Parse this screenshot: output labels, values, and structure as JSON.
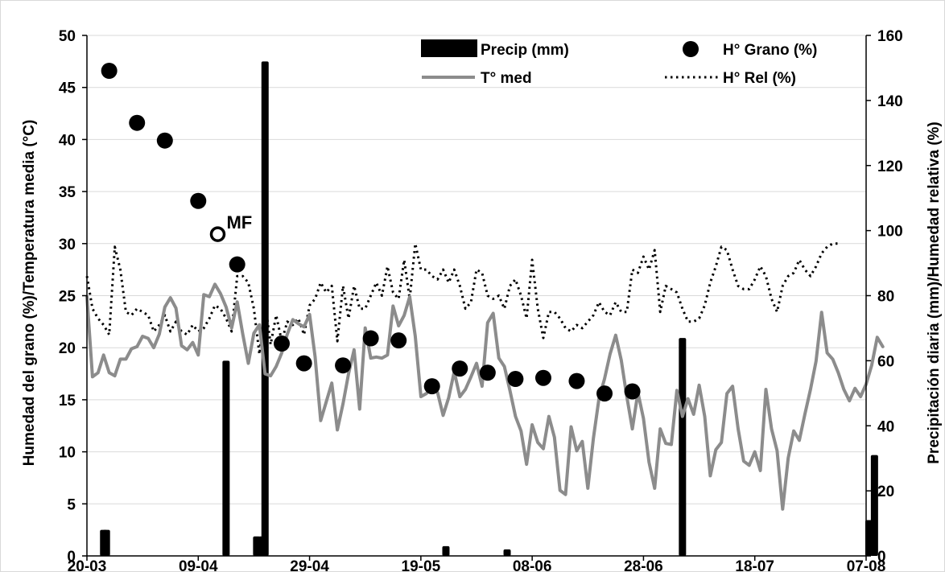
{
  "chart_data": {
    "type": "bar+line+scatter",
    "x_start": "20-03",
    "x_tick_labels": [
      "20-03",
      "09-04",
      "29-04",
      "19-05",
      "08-06",
      "28-06",
      "18-07",
      "07-08"
    ],
    "y_left": {
      "label": "Humedad del grano (%)/Temperatura media (°C)",
      "range": [
        0,
        50
      ],
      "ticks": [
        "0",
        "5",
        "10",
        "15",
        "20",
        "25",
        "30",
        "35",
        "40",
        "45",
        "50"
      ]
    },
    "y_right": {
      "label": "Precipitación diaria (mm)/Humedad relativa (%)",
      "range": [
        0,
        160
      ],
      "ticks": [
        "0",
        "20",
        "40",
        "60",
        "80",
        "100",
        "120",
        "140",
        "160"
      ]
    },
    "legend": [
      {
        "name": "Precip (mm)",
        "kind": "bar"
      },
      {
        "name": "H° Grano (%)",
        "kind": "dot"
      },
      {
        "name": "T° med",
        "kind": "line"
      },
      {
        "name": "H° Rel (%)",
        "kind": "dotted"
      }
    ],
    "annotation": {
      "text": "MF",
      "day": 23.5,
      "value": 30.9
    },
    "colors": {
      "bar": "#000000",
      "temp_line": "#8c8c8c",
      "dots": "#000000",
      "rel_humidity": "#000000"
    },
    "precip_mm": [
      [
        3,
        8
      ],
      [
        3.5,
        8
      ],
      [
        25,
        60
      ],
      [
        30.5,
        6
      ],
      [
        31.5,
        6
      ],
      [
        32,
        152
      ],
      [
        64.5,
        3
      ],
      [
        75.5,
        2
      ],
      [
        107,
        67
      ],
      [
        140.5,
        11
      ],
      [
        141.5,
        31
      ]
    ],
    "grain_moisture_pct": [
      [
        4,
        46.6
      ],
      [
        9,
        41.6
      ],
      [
        14,
        39.9
      ],
      [
        20,
        34.1
      ],
      [
        27,
        28.0
      ],
      [
        35,
        20.4
      ],
      [
        39,
        18.5
      ],
      [
        46,
        18.3
      ],
      [
        51,
        20.9
      ],
      [
        56,
        20.7
      ],
      [
        62,
        16.3
      ],
      [
        67,
        18.0
      ],
      [
        72,
        17.6
      ],
      [
        77,
        17.0
      ],
      [
        82,
        17.1
      ],
      [
        88,
        16.8
      ],
      [
        93,
        15.6
      ],
      [
        98,
        15.8
      ]
    ],
    "mf_point": [
      23.5,
      30.9
    ],
    "temperature_c": [
      [
        0,
        24.9
      ],
      [
        1,
        17.2
      ],
      [
        2,
        17.6
      ],
      [
        3,
        19.3
      ],
      [
        4,
        17.6
      ],
      [
        5,
        17.3
      ],
      [
        6,
        18.9
      ],
      [
        7,
        18.9
      ],
      [
        8,
        19.9
      ],
      [
        9,
        20.1
      ],
      [
        10,
        21.1
      ],
      [
        11,
        20.9
      ],
      [
        12,
        20.0
      ],
      [
        13,
        21.3
      ],
      [
        14,
        23.9
      ],
      [
        15,
        24.8
      ],
      [
        16,
        23.8
      ],
      [
        17,
        20.2
      ],
      [
        18,
        19.8
      ],
      [
        19,
        20.5
      ],
      [
        20,
        19.3
      ],
      [
        21,
        25.1
      ],
      [
        22,
        24.9
      ],
      [
        23,
        26.1
      ],
      [
        24,
        25.2
      ],
      [
        25,
        23.9
      ],
      [
        26,
        21.9
      ],
      [
        27,
        24.4
      ],
      [
        28,
        21.3
      ],
      [
        29,
        18.5
      ],
      [
        30,
        21.4
      ],
      [
        31,
        22.2
      ],
      [
        32,
        17.5
      ],
      [
        33,
        17.3
      ],
      [
        34,
        18.2
      ],
      [
        35,
        19.5
      ],
      [
        36,
        21.3
      ],
      [
        37,
        22.7
      ],
      [
        38,
        22.3
      ],
      [
        39,
        22.0
      ],
      [
        40,
        23.2
      ],
      [
        41,
        19.1
      ],
      [
        42,
        13.0
      ],
      [
        43,
        14.8
      ],
      [
        44,
        16.6
      ],
      [
        45,
        12.1
      ],
      [
        46,
        14.6
      ],
      [
        47,
        17.5
      ],
      [
        48,
        19.8
      ],
      [
        49,
        14.1
      ],
      [
        50,
        21.9
      ],
      [
        51,
        19.0
      ],
      [
        52,
        19.1
      ],
      [
        53,
        19.0
      ],
      [
        54,
        19.3
      ],
      [
        55,
        24.0
      ],
      [
        56,
        22.1
      ],
      [
        57,
        23.1
      ],
      [
        58,
        24.9
      ],
      [
        59,
        21.1
      ],
      [
        60,
        15.3
      ],
      [
        61,
        15.6
      ],
      [
        62,
        16.2
      ],
      [
        63,
        15.7
      ],
      [
        64,
        13.5
      ],
      [
        65,
        15.2
      ],
      [
        66,
        17.7
      ],
      [
        67,
        15.3
      ],
      [
        68,
        16.0
      ],
      [
        69,
        17.2
      ],
      [
        70,
        18.5
      ],
      [
        71,
        16.3
      ],
      [
        72,
        22.4
      ],
      [
        73,
        23.3
      ],
      [
        74,
        19.0
      ],
      [
        75,
        18.2
      ],
      [
        76,
        15.9
      ],
      [
        77,
        13.4
      ],
      [
        78,
        12.0
      ],
      [
        79,
        8.8
      ],
      [
        80,
        12.6
      ],
      [
        81,
        10.9
      ],
      [
        82,
        10.3
      ],
      [
        83,
        13.4
      ],
      [
        84,
        11.4
      ],
      [
        85,
        6.3
      ],
      [
        86,
        5.9
      ],
      [
        87,
        12.4
      ],
      [
        88,
        10.1
      ],
      [
        89,
        11.0
      ],
      [
        90,
        6.5
      ],
      [
        91,
        11.3
      ],
      [
        92,
        15.1
      ],
      [
        93,
        17.0
      ],
      [
        94,
        19.4
      ],
      [
        95,
        21.2
      ],
      [
        96,
        18.8
      ],
      [
        97,
        15.3
      ],
      [
        98,
        12.2
      ],
      [
        99,
        15.7
      ],
      [
        100,
        13.2
      ],
      [
        101,
        9.0
      ],
      [
        102,
        6.5
      ],
      [
        103,
        12.2
      ],
      [
        104,
        10.8
      ],
      [
        105,
        10.7
      ],
      [
        106,
        15.9
      ],
      [
        107,
        13.4
      ],
      [
        108,
        15.1
      ],
      [
        109,
        13.6
      ],
      [
        110,
        16.4
      ],
      [
        111,
        13.4
      ],
      [
        112,
        7.7
      ],
      [
        113,
        10.2
      ],
      [
        114,
        10.9
      ],
      [
        115,
        15.6
      ],
      [
        116,
        16.3
      ],
      [
        117,
        12.2
      ],
      [
        118,
        9.1
      ],
      [
        119,
        8.7
      ],
      [
        120,
        10.0
      ],
      [
        121,
        8.2
      ],
      [
        122,
        16.0
      ],
      [
        123,
        12.2
      ],
      [
        124,
        10.1
      ],
      [
        125,
        4.5
      ],
      [
        126,
        9.4
      ],
      [
        127,
        12.0
      ],
      [
        128,
        11.1
      ],
      [
        129,
        13.6
      ],
      [
        130,
        16.0
      ],
      [
        131,
        18.7
      ],
      [
        132,
        23.4
      ],
      [
        133,
        19.5
      ],
      [
        134,
        18.9
      ],
      [
        135,
        17.6
      ],
      [
        136,
        16.0
      ],
      [
        137,
        14.9
      ],
      [
        138,
        16.1
      ],
      [
        139,
        15.3
      ],
      [
        140,
        16.5
      ],
      [
        141,
        18.3
      ],
      [
        142,
        21.0
      ],
      [
        143,
        20.1
      ]
    ],
    "rel_humidity_pct": [
      [
        0,
        86
      ],
      [
        1,
        76
      ],
      [
        2,
        73
      ],
      [
        3,
        71
      ],
      [
        4,
        68
      ],
      [
        5,
        95
      ],
      [
        6,
        88
      ],
      [
        7,
        75
      ],
      [
        8,
        74
      ],
      [
        9,
        76
      ],
      [
        10,
        75
      ],
      [
        11,
        74
      ],
      [
        12,
        69
      ],
      [
        13,
        71
      ],
      [
        14,
        74
      ],
      [
        15,
        69
      ],
      [
        16,
        72
      ],
      [
        17,
        69
      ],
      [
        18,
        68
      ],
      [
        19,
        71
      ],
      [
        20,
        69
      ],
      [
        21,
        70
      ],
      [
        22,
        73
      ],
      [
        23,
        77
      ],
      [
        24,
        76
      ],
      [
        25,
        73
      ],
      [
        26,
        69
      ],
      [
        27,
        86
      ],
      [
        28,
        86
      ],
      [
        29,
        84
      ],
      [
        30,
        76
      ],
      [
        31,
        62
      ],
      [
        32,
        78
      ],
      [
        33,
        65
      ],
      [
        34,
        74
      ],
      [
        35,
        66
      ],
      [
        36,
        72
      ],
      [
        37,
        71
      ],
      [
        38,
        73
      ],
      [
        39,
        68
      ],
      [
        40,
        77
      ],
      [
        41,
        79
      ],
      [
        42,
        84
      ],
      [
        43,
        81
      ],
      [
        44,
        83
      ],
      [
        45,
        66
      ],
      [
        46,
        83
      ],
      [
        47,
        73
      ],
      [
        48,
        83
      ],
      [
        49,
        76
      ],
      [
        50,
        76
      ],
      [
        51,
        80
      ],
      [
        52,
        84
      ],
      [
        53,
        80
      ],
      [
        54,
        89
      ],
      [
        55,
        81
      ],
      [
        56,
        79
      ],
      [
        57,
        91
      ],
      [
        58,
        79
      ],
      [
        59,
        96
      ],
      [
        60,
        88
      ],
      [
        61,
        88
      ],
      [
        62,
        86
      ],
      [
        63,
        85
      ],
      [
        64,
        88
      ],
      [
        65,
        84
      ],
      [
        66,
        88
      ],
      [
        67,
        83
      ],
      [
        68,
        76
      ],
      [
        69,
        78
      ],
      [
        70,
        88
      ],
      [
        71,
        87
      ],
      [
        72,
        80
      ],
      [
        73,
        79
      ],
      [
        74,
        80
      ],
      [
        75,
        76
      ],
      [
        76,
        83
      ],
      [
        77,
        85
      ],
      [
        78,
        80
      ],
      [
        79,
        73
      ],
      [
        80,
        91
      ],
      [
        81,
        76
      ],
      [
        82,
        67
      ],
      [
        83,
        75
      ],
      [
        84,
        75
      ],
      [
        85,
        73
      ],
      [
        86,
        70
      ],
      [
        87,
        69
      ],
      [
        88,
        71
      ],
      [
        89,
        70
      ],
      [
        90,
        72
      ],
      [
        91,
        74
      ],
      [
        92,
        78
      ],
      [
        93,
        75
      ],
      [
        94,
        74
      ],
      [
        95,
        78
      ],
      [
        96,
        75
      ],
      [
        97,
        75
      ],
      [
        98,
        88
      ],
      [
        99,
        87
      ],
      [
        100,
        92
      ],
      [
        101,
        88
      ],
      [
        102,
        94
      ],
      [
        103,
        75
      ],
      [
        104,
        83
      ],
      [
        105,
        82
      ],
      [
        106,
        81
      ],
      [
        107,
        76
      ],
      [
        108,
        72
      ],
      [
        109,
        72
      ],
      [
        110,
        73
      ],
      [
        111,
        77
      ],
      [
        112,
        84
      ],
      [
        113,
        89
      ],
      [
        114,
        95
      ],
      [
        115,
        94
      ],
      [
        116,
        88
      ],
      [
        117,
        83
      ],
      [
        118,
        82
      ],
      [
        119,
        82
      ],
      [
        120,
        85
      ],
      [
        121,
        89
      ],
      [
        122,
        86
      ],
      [
        123,
        79
      ],
      [
        124,
        75
      ],
      [
        125,
        83
      ],
      [
        126,
        86
      ],
      [
        127,
        87
      ],
      [
        128,
        91
      ],
      [
        129,
        88
      ],
      [
        130,
        86
      ],
      [
        131,
        89
      ],
      [
        132,
        93
      ],
      [
        133,
        95
      ],
      [
        134,
        96
      ],
      [
        135,
        96
      ]
    ]
  }
}
